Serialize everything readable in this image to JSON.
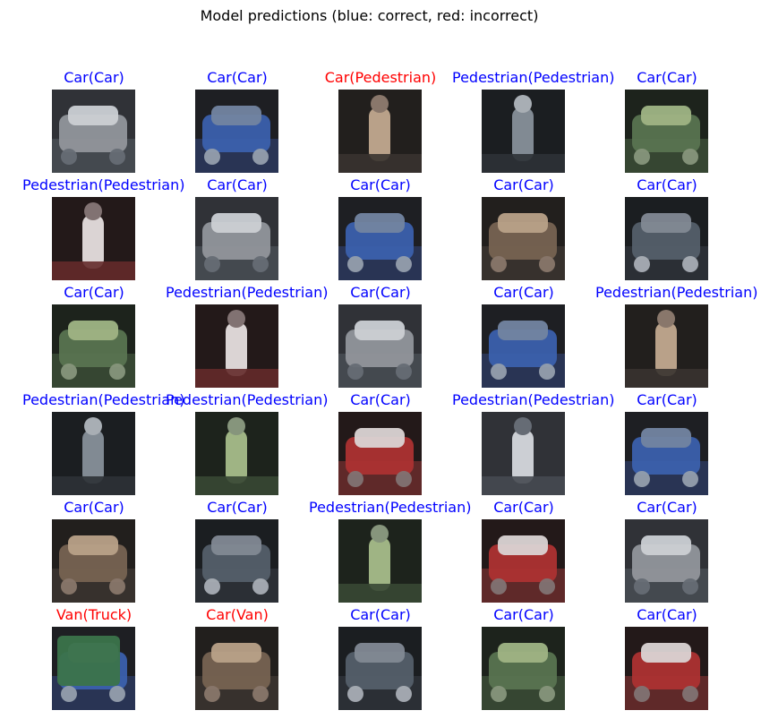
{
  "figure": {
    "title": "Model predictions (blue: correct, red: incorrect)"
  },
  "colors": {
    "correct": "#0000ff",
    "incorrect": "#ff0000"
  },
  "cells": [
    {
      "label": "Car(Car)",
      "correct": true,
      "image": "car-thumbnail"
    },
    {
      "label": "Car(Car)",
      "correct": true,
      "image": "car-thumbnail"
    },
    {
      "label": "Car(Pedestrian)",
      "correct": false,
      "image": "blurred-pedestrian-thumbnail"
    },
    {
      "label": "Pedestrian(Pedestrian)",
      "correct": true,
      "image": "pedestrian-thumbnail"
    },
    {
      "label": "Car(Car)",
      "correct": true,
      "image": "car-thumbnail"
    },
    {
      "label": "Pedestrian(Pedestrian)",
      "correct": true,
      "image": "pedestrian-thumbnail"
    },
    {
      "label": "Car(Car)",
      "correct": true,
      "image": "car-thumbnail"
    },
    {
      "label": "Car(Car)",
      "correct": true,
      "image": "car-thumbnail"
    },
    {
      "label": "Car(Car)",
      "correct": true,
      "image": "car-thumbnail"
    },
    {
      "label": "Car(Car)",
      "correct": true,
      "image": "car-thumbnail"
    },
    {
      "label": "Car(Car)",
      "correct": true,
      "image": "car-thumbnail"
    },
    {
      "label": "Pedestrian(Pedestrian)",
      "correct": true,
      "image": "pedestrian-thumbnail"
    },
    {
      "label": "Car(Car)",
      "correct": true,
      "image": "car-thumbnail"
    },
    {
      "label": "Car(Car)",
      "correct": true,
      "image": "car-thumbnail"
    },
    {
      "label": "Pedestrian(Pedestrian)",
      "correct": true,
      "image": "pedestrian-thumbnail"
    },
    {
      "label": "Pedestrian(Pedestrian)",
      "correct": true,
      "image": "pedestrian-thumbnail"
    },
    {
      "label": "Pedestrian(Pedestrian)",
      "correct": true,
      "image": "pedestrian-thumbnail"
    },
    {
      "label": "Car(Car)",
      "correct": true,
      "image": "car-thumbnail"
    },
    {
      "label": "Pedestrian(Pedestrian)",
      "correct": true,
      "image": "pedestrian-thumbnail"
    },
    {
      "label": "Car(Car)",
      "correct": true,
      "image": "car-thumbnail"
    },
    {
      "label": "Car(Car)",
      "correct": true,
      "image": "car-thumbnail"
    },
    {
      "label": "Car(Car)",
      "correct": true,
      "image": "car-thumbnail"
    },
    {
      "label": "Pedestrian(Pedestrian)",
      "correct": true,
      "image": "pedestrian-thumbnail"
    },
    {
      "label": "Car(Car)",
      "correct": true,
      "image": "car-thumbnail"
    },
    {
      "label": "Car(Car)",
      "correct": true,
      "image": "car-thumbnail"
    },
    {
      "label": "Van(Truck)",
      "correct": false,
      "image": "truck-thumbnail"
    },
    {
      "label": "Car(Van)",
      "correct": false,
      "image": "van-thumbnail"
    },
    {
      "label": "Car(Car)",
      "correct": true,
      "image": "car-thumbnail"
    },
    {
      "label": "Car(Car)",
      "correct": true,
      "image": "car-thumbnail"
    },
    {
      "label": "Car(Car)",
      "correct": true,
      "image": "car-thumbnail"
    }
  ]
}
